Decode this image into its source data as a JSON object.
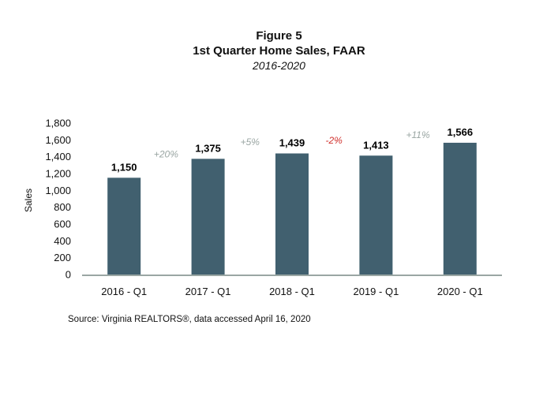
{
  "figure": {
    "label": "Figure 5",
    "title": "1st Quarter Home Sales, FAAR",
    "subtitle": "2016-2020",
    "source": "Source: Virginia REALTORS®, data accessed April 16, 2020"
  },
  "chart_data": {
    "type": "bar",
    "title": "1st Quarter Home Sales, FAAR",
    "subtitle": "2016-2020",
    "xlabel": "",
    "ylabel": "Sales",
    "ylim": [
      0,
      1800
    ],
    "yticks": [
      0,
      200,
      400,
      600,
      800,
      1000,
      1200,
      1400,
      1600,
      1800
    ],
    "ytick_labels": [
      "0",
      "200",
      "400",
      "600",
      "800",
      "1,000",
      "1,200",
      "1,400",
      "1,600",
      "1,800"
    ],
    "categories": [
      "2016 - Q1",
      "2017 - Q1",
      "2018 - Q1",
      "2019 - Q1",
      "2020 - Q1"
    ],
    "values": [
      1150,
      1375,
      1439,
      1413,
      1566
    ],
    "data_labels": [
      "1,150",
      "1,375",
      "1,439",
      "1,413",
      "1,566"
    ],
    "changes": [
      {
        "text": "+20%",
        "color": "#9aa6a3"
      },
      {
        "text": "+5%",
        "color": "#9aa6a3"
      },
      {
        "text": "-2%",
        "color": "#d0312d"
      },
      {
        "text": "+11%",
        "color": "#9aa6a3"
      }
    ],
    "bar_color": "#41606f",
    "axis_color": "#9aa6a3",
    "grid": false,
    "legend": "none"
  }
}
